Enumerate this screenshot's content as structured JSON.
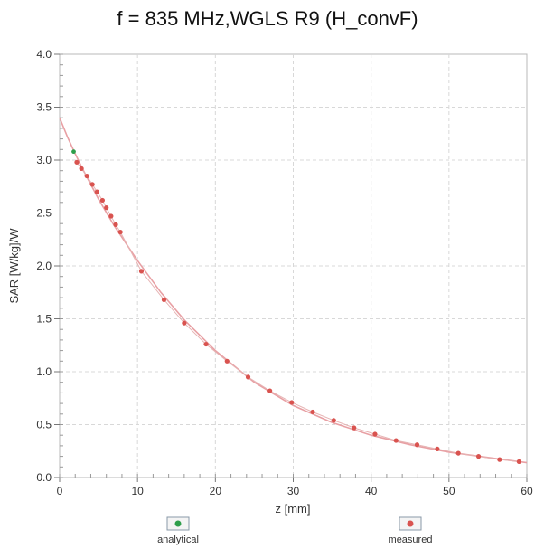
{
  "chart_data": {
    "type": "line",
    "title": "f = 835 MHz,WGLS R9 (H_convF)",
    "xlabel": "z [mm]",
    "ylabel": "SAR [W/kg]/W",
    "xlim": [
      0,
      60
    ],
    "ylim": [
      0,
      4.0
    ],
    "x_ticks": [
      "0",
      "10",
      "20",
      "30",
      "40",
      "50",
      "60"
    ],
    "y_ticks": [
      "0.0",
      "0.5",
      "1.0",
      "1.5",
      "2.0",
      "2.5",
      "3.0",
      "3.5",
      "4.0"
    ],
    "grid": true,
    "legend_position": "bottom",
    "colors": {
      "analytical": "#e8a0a4",
      "measured": "#d9534f",
      "analytical_marker": "#2e9e4a",
      "grid": "#d8d8d8"
    },
    "series": [
      {
        "name": "analytical",
        "x": [
          0,
          1,
          2,
          3,
          5,
          7,
          10,
          13,
          16,
          20,
          25,
          30,
          35,
          40,
          45,
          50,
          55,
          60
        ],
        "y": [
          3.4,
          3.22,
          3.06,
          2.91,
          2.63,
          2.38,
          2.05,
          1.75,
          1.49,
          1.2,
          0.9,
          0.68,
          0.52,
          0.4,
          0.31,
          0.24,
          0.19,
          0.14
        ]
      },
      {
        "name": "measured",
        "x": [
          2.2,
          2.8,
          3.5,
          4.2,
          4.8,
          5.5,
          6.0,
          6.6,
          7.2,
          7.8,
          10.5,
          13.4,
          16.0,
          18.8,
          21.5,
          24.2,
          27.0,
          29.8,
          32.5,
          35.2,
          37.8,
          40.5,
          43.2,
          45.9,
          48.5,
          51.2,
          53.8,
          56.5,
          59.0
        ],
        "y": [
          2.98,
          2.92,
          2.85,
          2.77,
          2.7,
          2.62,
          2.55,
          2.47,
          2.39,
          2.32,
          1.95,
          1.68,
          1.46,
          1.26,
          1.1,
          0.95,
          0.82,
          0.71,
          0.62,
          0.54,
          0.47,
          0.41,
          0.35,
          0.31,
          0.27,
          0.23,
          0.2,
          0.17,
          0.15
        ]
      }
    ],
    "analytical_markers": {
      "x": [
        1.8
      ],
      "y": [
        3.08
      ]
    }
  }
}
